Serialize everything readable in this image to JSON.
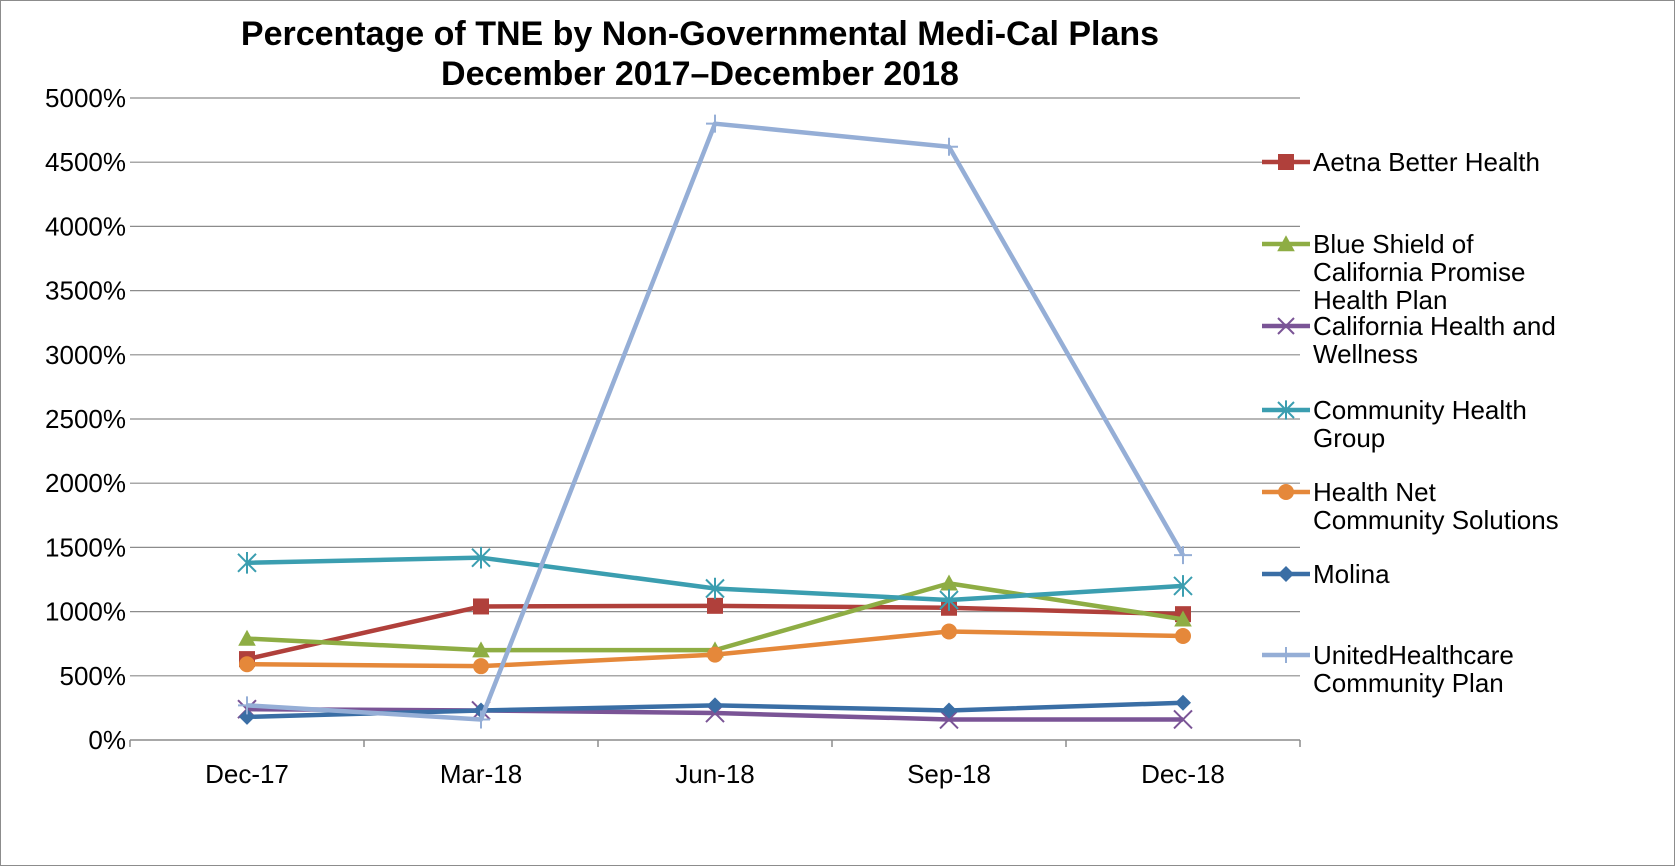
{
  "chart_data": {
    "type": "line",
    "title": "Percentage of TNE by Non-Governmental Medi-Cal Plans",
    "subtitle": "December 2017–December 2018",
    "xlabel": "",
    "ylabel": "",
    "categories": [
      "Dec-17",
      "Mar-18",
      "Jun-18",
      "Sep-18",
      "Dec-18"
    ],
    "ylim": [
      0,
      5000
    ],
    "y_ticks": [
      0,
      500,
      1000,
      1500,
      2000,
      2500,
      3000,
      3500,
      4000,
      4500,
      5000
    ],
    "y_tick_labels": [
      "0%",
      "500%",
      "1000%",
      "1500%",
      "2000%",
      "2500%",
      "3000%",
      "3500%",
      "4000%",
      "4500%",
      "5000%"
    ],
    "grid": "horizontal",
    "legend_position": "right",
    "series": [
      {
        "name": "Aetna Better Health",
        "legend_lines": [
          "Aetna Better Health"
        ],
        "color": "#b0403b",
        "marker": "square",
        "values": [
          630,
          1040,
          1045,
          1030,
          980
        ]
      },
      {
        "name": "Blue Shield of California Promise Health Plan",
        "legend_lines": [
          "Blue Shield of",
          "California Promise",
          "Health Plan"
        ],
        "color": "#8ead44",
        "marker": "triangle",
        "values": [
          790,
          700,
          700,
          1220,
          940
        ]
      },
      {
        "name": "California Health and Wellness",
        "legend_lines": [
          "California Health and",
          "Wellness"
        ],
        "color": "#7a5496",
        "marker": "x",
        "values": [
          240,
          230,
          210,
          160,
          160
        ]
      },
      {
        "name": "Community Health Group",
        "legend_lines": [
          "Community Health",
          "Group"
        ],
        "color": "#3b9eb0",
        "marker": "asterisk",
        "values": [
          1380,
          1420,
          1180,
          1090,
          1200
        ]
      },
      {
        "name": "Health Net Community Solutions",
        "legend_lines": [
          "Health Net",
          "Community Solutions"
        ],
        "color": "#e5883a",
        "marker": "circle",
        "values": [
          590,
          575,
          665,
          845,
          810
        ]
      },
      {
        "name": "Molina",
        "legend_lines": [
          "Molina"
        ],
        "color": "#3a6ea5",
        "marker": "diamond",
        "values": [
          180,
          230,
          270,
          230,
          290
        ]
      },
      {
        "name": "UnitedHealthcare Community Plan",
        "legend_lines": [
          "UnitedHealthcare",
          "Community Plan"
        ],
        "color": "#95aed6",
        "marker": "plus",
        "values": [
          270,
          160,
          4800,
          4620,
          1440
        ]
      }
    ]
  }
}
